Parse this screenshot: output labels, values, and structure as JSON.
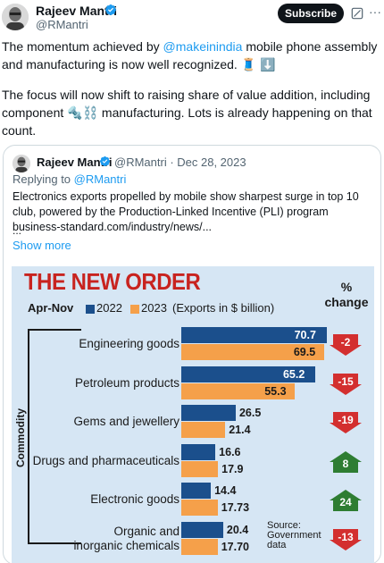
{
  "post": {
    "author": {
      "name": "Rajeev Mantri",
      "handle": "@RMantri"
    },
    "subscribe_label": "Subscribe",
    "text_before_mention": "The momentum achieved by ",
    "mention": "@makeinindia",
    "text_after_mention": " mobile phone assembly and manufacturing is now well recognized. 🧵 ⬇️",
    "paragraph2_part1": "The focus will now shift to raising share of value addition, including component ",
    "paragraph2_emoji": "🔩⛓️",
    "paragraph2_part2": " manufacturing. Lots is already happening on that count."
  },
  "quote": {
    "author": {
      "name": "Rajeev Mantri",
      "handle": "@RMantri"
    },
    "date_meta": "@RMantri · Dec 28, 2023",
    "replying_prefix": "Replying to ",
    "replying_handle": "@RMantri",
    "text": "Electronics exports propelled by mobile show sharpest surge in top 10 club, powered by the Production-Linked Incentive (PLI) program business-standard.com/industry/news/...",
    "ellipsis": "...",
    "show_more": "Show more"
  },
  "colors": {
    "series_2022": "#1b4f8c",
    "series_2023": "#f5a04a",
    "negative": "#d32f2f",
    "positive": "#2e7d32",
    "title": "#c8231f",
    "background": "#d6e6f4"
  },
  "icons": {
    "verified": "verified-badge-icon",
    "grok": "grok-icon",
    "more": "more-icon"
  },
  "chart_data": {
    "type": "bar",
    "title": "THE NEW ORDER",
    "period": "Apr-Nov",
    "legend_unit": "(Exports in $ billion)",
    "change_header": "% change",
    "axis_title": "Commodity",
    "categories": [
      "Engineering goods",
      "Petroleum products",
      "Gems and jewellery",
      "Drugs and pharmaceuticals",
      "Electronic goods",
      "Organic and inorganic chemicals"
    ],
    "series": [
      {
        "name": "2022",
        "values": [
          70.7,
          65.2,
          26.5,
          16.6,
          14.4,
          20.4
        ],
        "labels": [
          "70.7",
          "65.2",
          "26.5",
          "16.6",
          "14.4",
          "20.4"
        ]
      },
      {
        "name": "2023",
        "values": [
          69.5,
          55.3,
          21.4,
          17.9,
          17.73,
          17.7
        ],
        "labels": [
          "69.5",
          "55.3",
          "21.4",
          "17.9",
          "17.73",
          "17.70"
        ]
      }
    ],
    "change": [
      "-2",
      "-15",
      "-19",
      "8",
      "24",
      "-13"
    ],
    "source": [
      "Source:",
      "Government",
      "data"
    ]
  }
}
